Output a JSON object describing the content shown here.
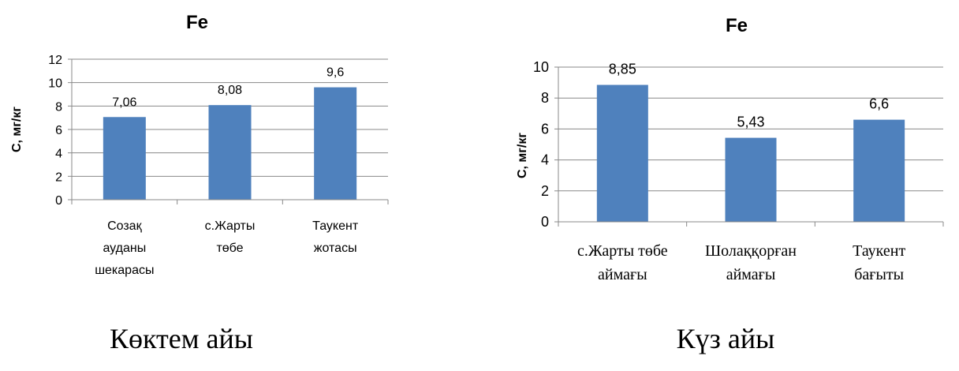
{
  "chart_data": [
    {
      "type": "bar",
      "title": "Fe",
      "ylabel": "С, мг/кг",
      "xlabel": "",
      "categories": [
        "Созақ ауданы шекарасы",
        "с.Жарты төбе",
        "Таукент жотасы"
      ],
      "category_lines": [
        [
          "Созақ",
          "ауданы",
          "шекарасы"
        ],
        [
          "с.Жарты",
          "төбе"
        ],
        [
          "Таукент",
          "жотасы"
        ]
      ],
      "values": [
        7.06,
        8.08,
        9.6
      ],
      "value_labels": [
        "7,06",
        "8,08",
        "9,6"
      ],
      "ylim": [
        0,
        12
      ],
      "yticks": [
        0,
        2,
        4,
        6,
        8,
        10,
        12
      ],
      "grid": true,
      "bar_color": "#4f81bd",
      "caption": "Көктем айы"
    },
    {
      "type": "bar",
      "title": "Fe",
      "ylabel": "С, мг/кг",
      "xlabel": "",
      "categories": [
        "с.Жарты төбе аймағы",
        "Шолаққорған аймағы",
        "Таукент бағыты"
      ],
      "category_lines": [
        [
          "с.Жарты төбе",
          "аймағы"
        ],
        [
          "Шолаққорған",
          "аймағы"
        ],
        [
          "Таукент",
          "бағыты"
        ]
      ],
      "values": [
        8.85,
        5.43,
        6.6
      ],
      "value_labels": [
        "8,85",
        "5,43",
        "6,6"
      ],
      "ylim": [
        0,
        10
      ],
      "yticks": [
        0,
        2,
        4,
        6,
        8,
        10
      ],
      "grid": true,
      "bar_color": "#4f81bd",
      "caption": "Күз айы"
    }
  ]
}
